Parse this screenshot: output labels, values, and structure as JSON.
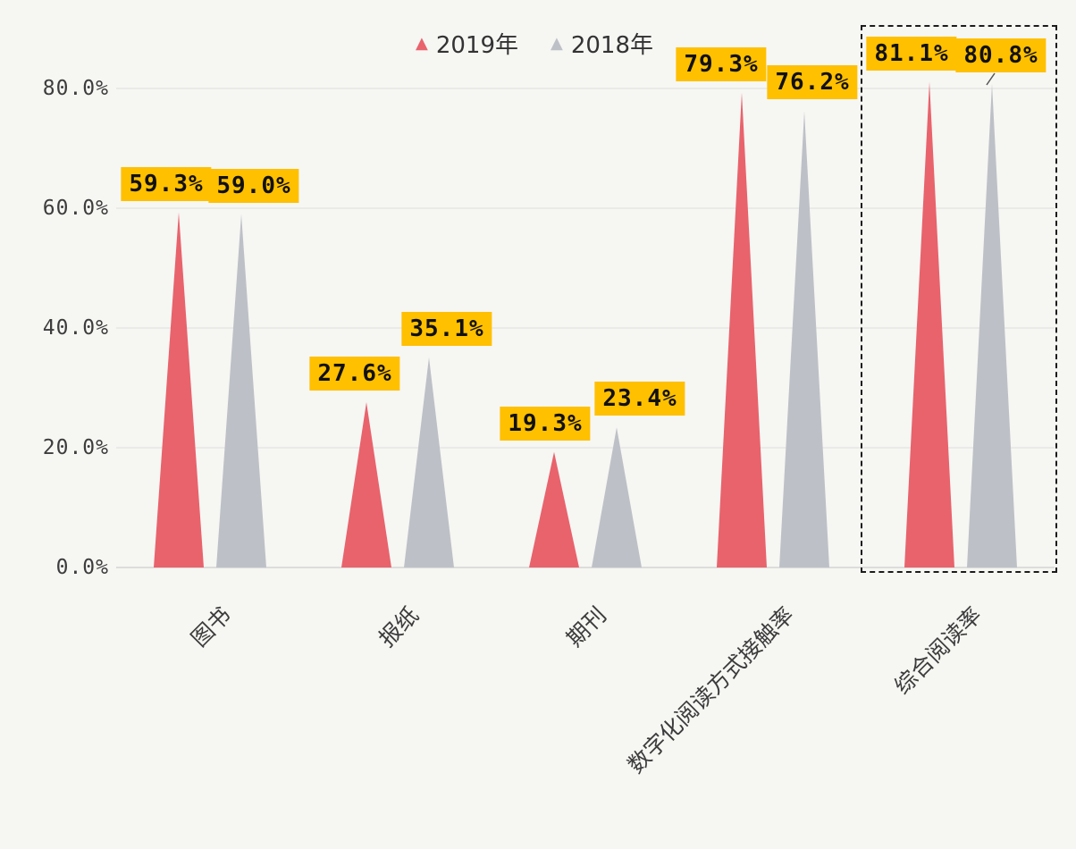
{
  "chart_data": {
    "type": "bar",
    "shape": "triangle",
    "title": "",
    "categories": [
      "图书",
      "报纸",
      "期刊",
      "数字化阅读方式接触率",
      "综合阅读率"
    ],
    "series": [
      {
        "name": "2019年",
        "color": "#e8636c",
        "values": [
          59.3,
          27.6,
          19.3,
          79.3,
          81.1
        ],
        "labels": [
          "59.3%",
          "27.6%",
          "19.3%",
          "79.3%",
          "81.1%"
        ]
      },
      {
        "name": "2018年",
        "color": "#bdc1c7",
        "values": [
          59.0,
          35.1,
          23.4,
          76.2,
          80.8
        ],
        "labels": [
          "59.0%",
          "35.1%",
          "23.4%",
          "76.2%",
          "80.8%"
        ]
      }
    ],
    "y_axis": {
      "ticks": [
        {
          "value": 0,
          "label": "0.0%"
        },
        {
          "value": 20,
          "label": "20.0%"
        },
        {
          "value": 40,
          "label": "40.0%"
        },
        {
          "value": 60,
          "label": "60.0%"
        },
        {
          "value": 80,
          "label": "80.0%"
        }
      ],
      "ylim": [
        0,
        90
      ]
    },
    "grid": true,
    "legend_position": "top",
    "value_label_bg": "#ffc000",
    "highlight": {
      "category": "综合阅读率",
      "style": "dashed-box"
    }
  }
}
